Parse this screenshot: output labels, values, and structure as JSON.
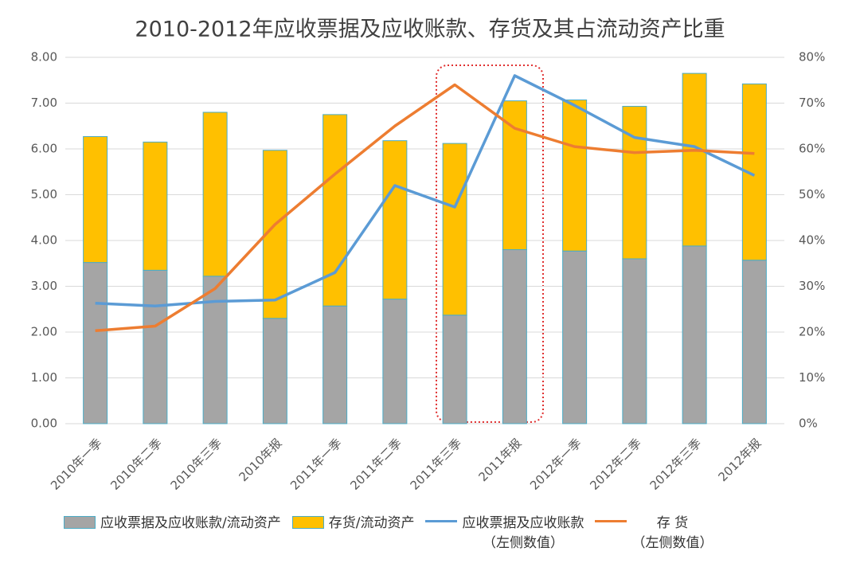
{
  "chart_data": {
    "type": "bar-line",
    "title": "2010-2012年应收票据及应收账款、存货及其占流动资产比重",
    "categories": [
      "2010年一季",
      "2010年二季",
      "2010年三季",
      "2010年报",
      "2011年一季",
      "2011年二季",
      "2011年三季",
      "2011年报",
      "2012年一季",
      "2012年二季",
      "2012年三季",
      "2012年报"
    ],
    "series": [
      {
        "name": "应收票据及应收账款/流动资产",
        "kind": "bar",
        "axis": "y2",
        "color": "#a5a5a5",
        "values": [
          35.2,
          33.5,
          32.2,
          23.0,
          25.7,
          27.2,
          23.7,
          38.0,
          37.7,
          36.0,
          38.8,
          35.7
        ]
      },
      {
        "name": "存货/流动资产",
        "kind": "bar",
        "axis": "y2",
        "color": "#ffc000",
        "values": [
          27.5,
          28.0,
          35.8,
          36.7,
          41.8,
          34.6,
          37.5,
          32.5,
          33.0,
          33.3,
          37.7,
          38.5
        ]
      },
      {
        "name": "应收票据及应收账款\n（左侧数值）",
        "kind": "line",
        "color": "#5b9bd5",
        "values": [
          2.63,
          2.57,
          2.67,
          2.7,
          3.3,
          5.2,
          4.73,
          7.6,
          6.95,
          6.25,
          6.05,
          5.42
        ]
      },
      {
        "name": "存 货\n（左侧数值）",
        "kind": "line",
        "color": "#ed7d31",
        "values": [
          2.03,
          2.13,
          2.95,
          4.35,
          5.45,
          6.5,
          7.4,
          6.45,
          6.05,
          5.92,
          5.97,
          5.9
        ]
      }
    ],
    "ylim": [
      0,
      8
    ],
    "yticks": [
      {
        "value": 0,
        "label": "0.00"
      },
      {
        "value": 1,
        "label": "1.00"
      },
      {
        "value": 2,
        "label": "2.00"
      },
      {
        "value": 3,
        "label": "3.00"
      },
      {
        "value": 4,
        "label": "4.00"
      },
      {
        "value": 5,
        "label": "5.00"
      },
      {
        "value": 6,
        "label": "6.00"
      },
      {
        "value": 7,
        "label": "7.00"
      },
      {
        "value": 8,
        "label": "8.00"
      }
    ],
    "y2lim": [
      0,
      80
    ],
    "y2ticks": [
      {
        "value": 0,
        "label": "0%"
      },
      {
        "value": 10,
        "label": "10%"
      },
      {
        "value": 20,
        "label": "20%"
      },
      {
        "value": 30,
        "label": "30%"
      },
      {
        "value": 40,
        "label": "40%"
      },
      {
        "value": 50,
        "label": "50%"
      },
      {
        "value": 60,
        "label": "60%"
      },
      {
        "value": 70,
        "label": "70%"
      },
      {
        "value": 80,
        "label": "80%"
      }
    ],
    "grid": true
  }
}
